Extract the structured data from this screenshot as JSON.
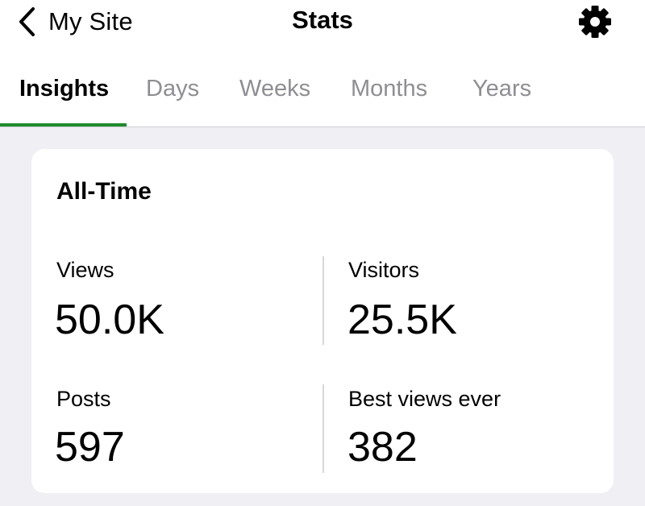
{
  "nav": {
    "back_label": "My Site",
    "title": "Stats",
    "back_icon": "chevron-left-icon",
    "settings_icon": "gear-icon"
  },
  "tabs": [
    {
      "label": "Insights",
      "active": true
    },
    {
      "label": "Days",
      "active": false
    },
    {
      "label": "Weeks",
      "active": false
    },
    {
      "label": "Months",
      "active": false
    },
    {
      "label": "Years",
      "active": false
    }
  ],
  "all_time": {
    "title": "All-Time",
    "views": {
      "label": "Views",
      "value": "50.0K"
    },
    "visitors": {
      "label": "Visitors",
      "value": "25.5K"
    },
    "posts": {
      "label": "Posts",
      "value": "597"
    },
    "best_views": {
      "label": "Best views ever",
      "value": "382"
    }
  },
  "colors": {
    "accent": "#1f8a2e",
    "inactive_tab": "#8e8e93",
    "background": "#efeff4"
  }
}
